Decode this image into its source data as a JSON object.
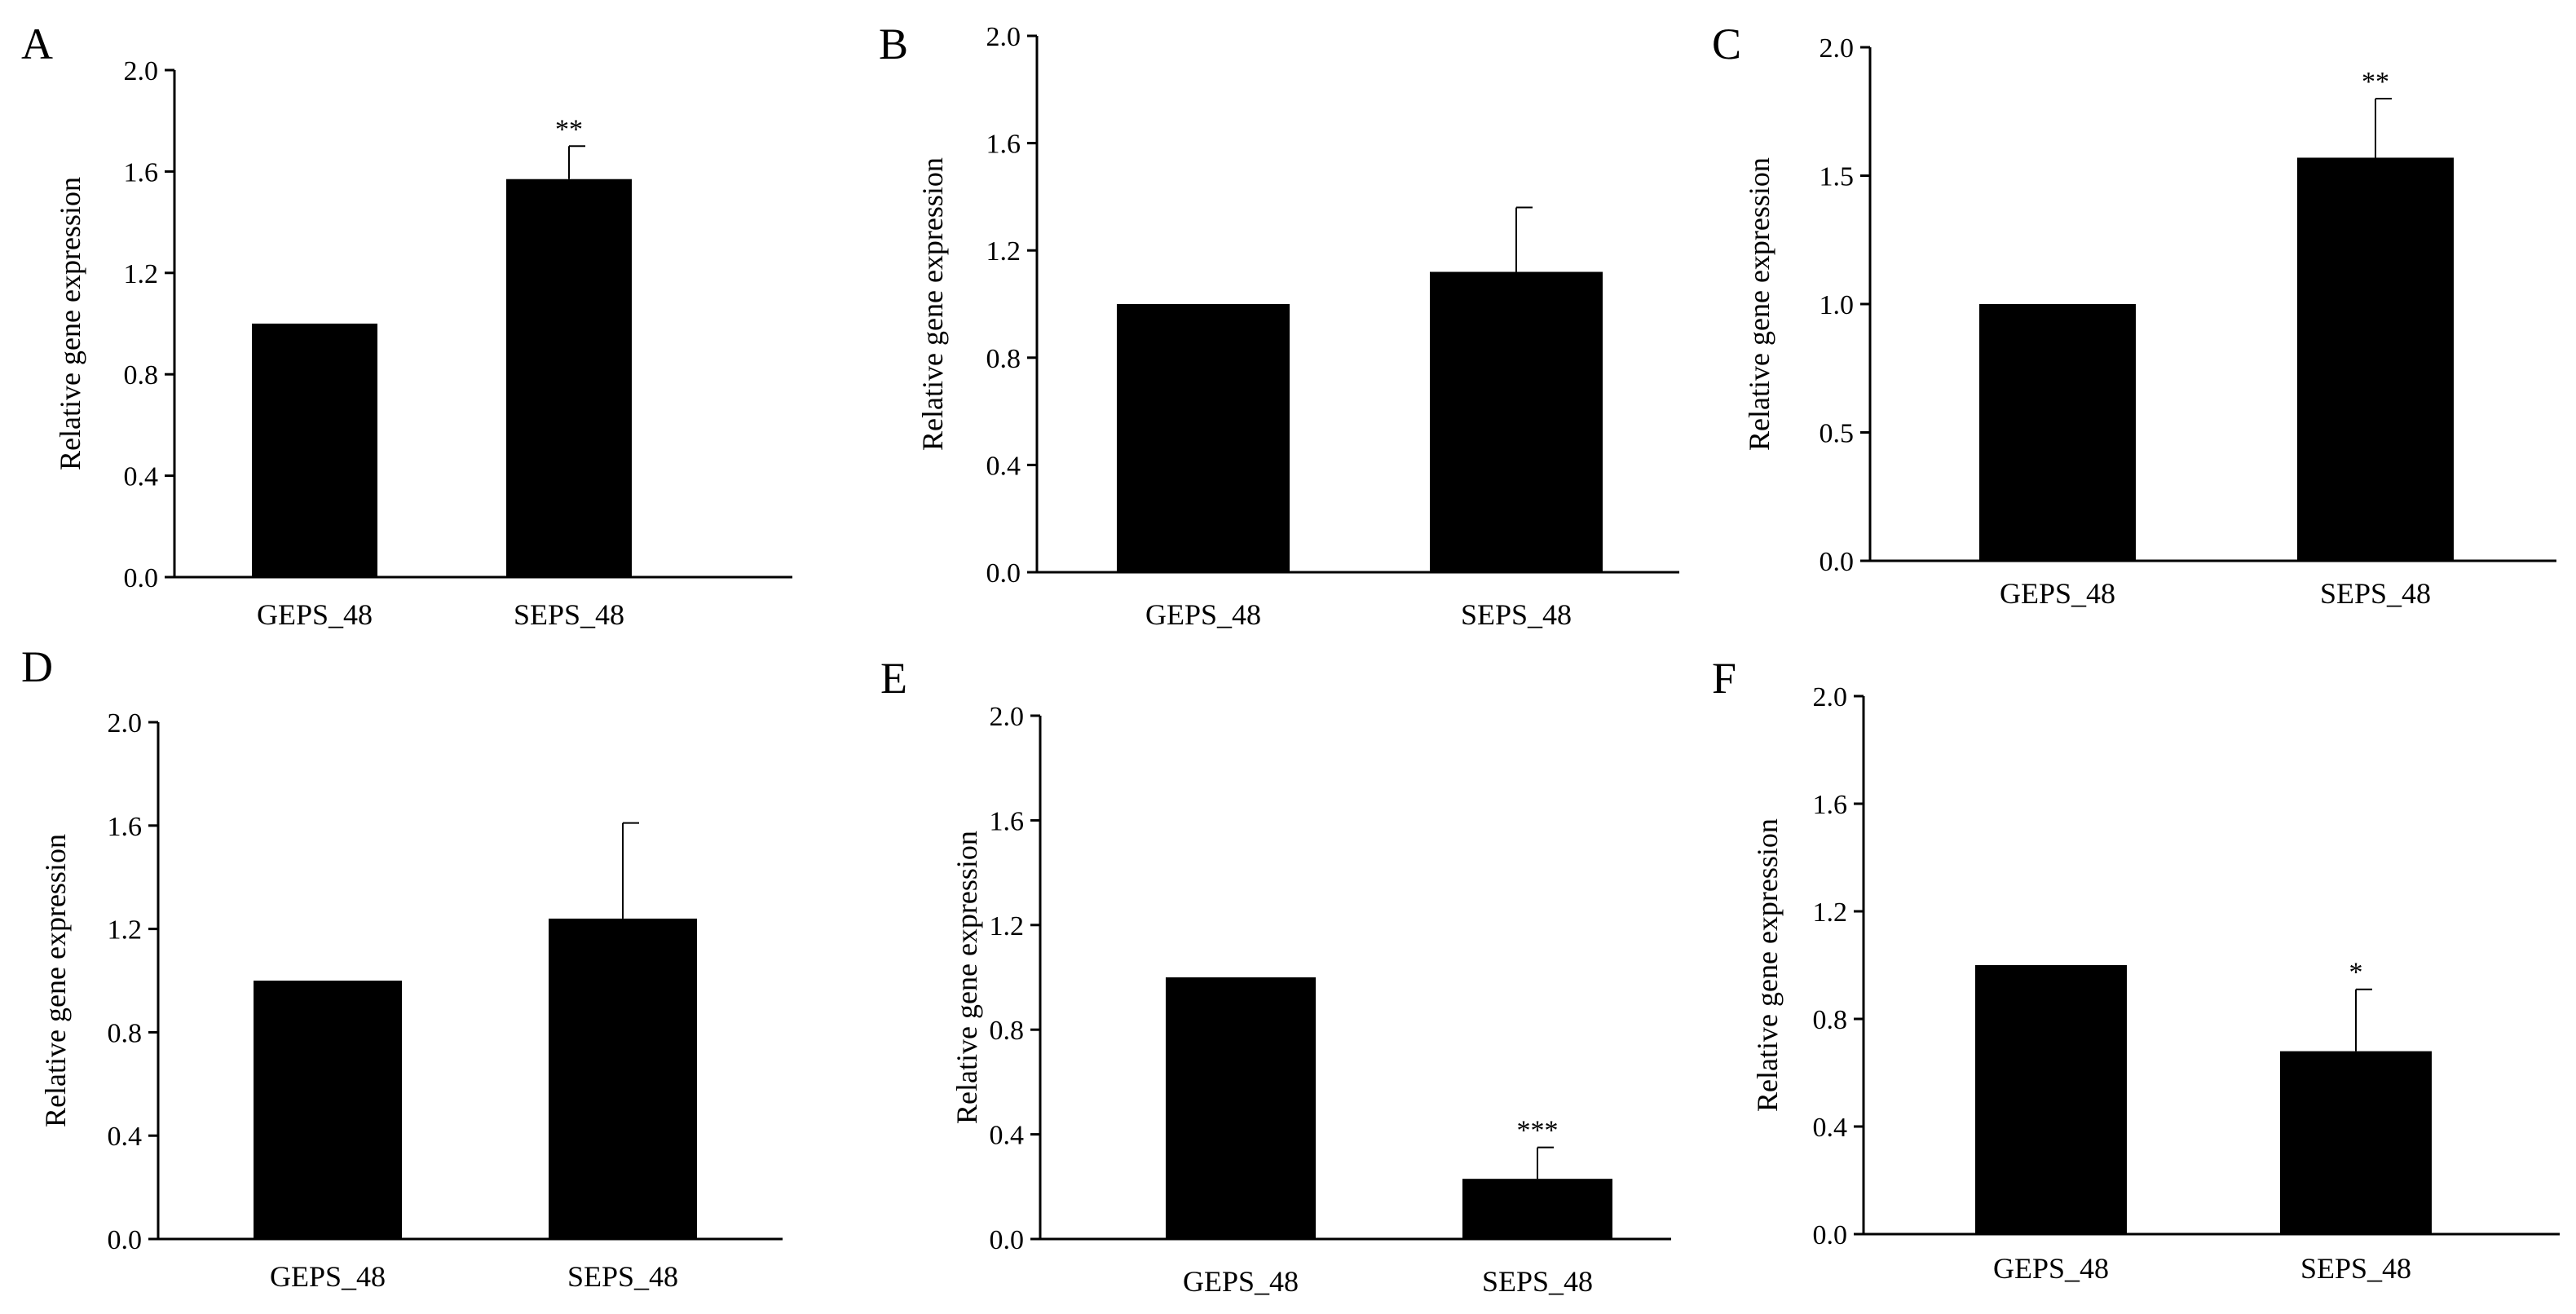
{
  "chart_data": [
    {
      "panel": "A",
      "type": "bar",
      "categories": [
        "GEPS_48",
        "SEPS_48"
      ],
      "values": [
        1.0,
        1.57
      ],
      "error_upper": [
        0.0,
        0.13
      ],
      "significance": [
        "",
        "**"
      ],
      "ylabel": "Relative gene expression",
      "xlabel": "",
      "ylim": [
        0,
        2.0
      ],
      "yticks": [
        "0.0",
        "0.4",
        "0.8",
        "1.2",
        "1.6",
        "2.0"
      ],
      "bar_color": "#000000"
    },
    {
      "panel": "B",
      "type": "bar",
      "categories": [
        "GEPS_48",
        "SEPS_48"
      ],
      "values": [
        1.0,
        1.12
      ],
      "error_upper": [
        0.0,
        0.24
      ],
      "significance": [
        "",
        ""
      ],
      "ylabel": "Relative gene expression",
      "xlabel": "",
      "ylim": [
        0,
        2.0
      ],
      "yticks": [
        "0.0",
        "0.4",
        "0.8",
        "1.2",
        "1.6",
        "2.0"
      ],
      "bar_color": "#000000"
    },
    {
      "panel": "C",
      "type": "bar",
      "categories": [
        "GEPS_48",
        "SEPS_48"
      ],
      "values": [
        1.0,
        1.57
      ],
      "error_upper": [
        0.0,
        0.23
      ],
      "significance": [
        "",
        "**"
      ],
      "ylabel": "Relative gene expression",
      "xlabel": "",
      "ylim": [
        0,
        2.0
      ],
      "yticks": [
        "0.0",
        "0.5",
        "1.0",
        "1.5",
        "2.0"
      ],
      "bar_color": "#000000"
    },
    {
      "panel": "D",
      "type": "bar",
      "categories": [
        "GEPS_48",
        "SEPS_48"
      ],
      "values": [
        1.0,
        1.24
      ],
      "error_upper": [
        0.0,
        0.37
      ],
      "significance": [
        "",
        ""
      ],
      "ylabel": "Relative gene expression",
      "xlabel": "",
      "ylim": [
        0,
        2.0
      ],
      "yticks": [
        "0.0",
        "0.4",
        "0.8",
        "1.2",
        "1.6",
        "2.0"
      ],
      "bar_color": "#000000"
    },
    {
      "panel": "E",
      "type": "bar",
      "categories": [
        "GEPS_48",
        "SEPS_48"
      ],
      "values": [
        1.0,
        0.23
      ],
      "error_upper": [
        0.0,
        0.12
      ],
      "significance": [
        "",
        "***"
      ],
      "ylabel": "Relative gene expression",
      "xlabel": "",
      "ylim": [
        0,
        2.0
      ],
      "yticks": [
        "0.0",
        "0.4",
        "0.8",
        "1.2",
        "1.6",
        "2.0"
      ],
      "bar_color": "#000000"
    },
    {
      "panel": "F",
      "type": "bar",
      "categories": [
        "GEPS_48",
        "SEPS_48"
      ],
      "values": [
        1.0,
        0.68
      ],
      "error_upper": [
        0.0,
        0.23
      ],
      "significance": [
        "",
        "*"
      ],
      "ylabel": "Relative gene expression",
      "xlabel": "",
      "ylim": [
        0,
        2.0
      ],
      "yticks": [
        "0.0",
        "0.4",
        "0.8",
        "1.2",
        "1.6",
        "2.0"
      ],
      "bar_color": "#000000"
    }
  ]
}
